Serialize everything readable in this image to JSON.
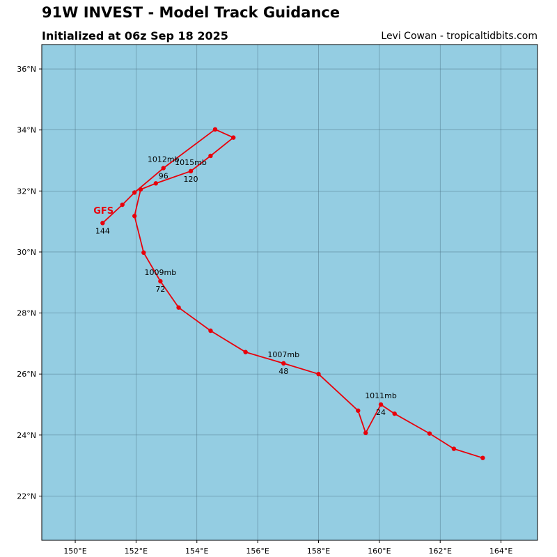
{
  "header": {
    "title": "91W INVEST - Model Track Guidance",
    "subtitle": "Initialized at 06z Sep 18 2025",
    "credit": "Levi Cowan - tropicaltidbits.com"
  },
  "map": {
    "lon_range": [
      148.9,
      165.2
    ],
    "lat_range": [
      20.55,
      36.8
    ],
    "ocean_color": "#94cde2",
    "grid_color": "#4a6f80",
    "track_color": "#e8000b",
    "lon_ticks": [
      {
        "value": 150,
        "label": "150°E"
      },
      {
        "value": 152,
        "label": "152°E"
      },
      {
        "value": 154,
        "label": "154°E"
      },
      {
        "value": 156,
        "label": "156°E"
      },
      {
        "value": 158,
        "label": "158°E"
      },
      {
        "value": 160,
        "label": "160°E"
      },
      {
        "value": 162,
        "label": "162°E"
      },
      {
        "value": 164,
        "label": "164°E"
      }
    ],
    "lat_ticks": [
      {
        "value": 22,
        "label": "22°N"
      },
      {
        "value": 24,
        "label": "24°N"
      },
      {
        "value": 26,
        "label": "26°N"
      },
      {
        "value": 28,
        "label": "28°N"
      },
      {
        "value": 30,
        "label": "30°N"
      },
      {
        "value": 32,
        "label": "32°N"
      },
      {
        "value": 34,
        "label": "34°N"
      },
      {
        "value": 36,
        "label": "36°N"
      }
    ]
  },
  "tracks": [
    {
      "model": "GFS",
      "label_pos": {
        "lon": 150.6,
        "lat": 31.25
      },
      "points": [
        {
          "lon": 163.4,
          "lat": 23.25
        },
        {
          "lon": 162.45,
          "lat": 23.55
        },
        {
          "lon": 161.65,
          "lat": 24.05
        },
        {
          "lon": 160.5,
          "lat": 24.7
        },
        {
          "lon": 160.05,
          "lat": 25.0
        },
        {
          "lon": 159.55,
          "lat": 24.07
        },
        {
          "lon": 159.3,
          "lat": 24.8
        },
        {
          "lon": 158.0,
          "lat": 26.0
        },
        {
          "lon": 156.85,
          "lat": 26.35
        },
        {
          "lon": 155.6,
          "lat": 26.72
        },
        {
          "lon": 154.45,
          "lat": 27.42
        },
        {
          "lon": 153.4,
          "lat": 28.18
        },
        {
          "lon": 152.8,
          "lat": 29.04
        },
        {
          "lon": 152.25,
          "lat": 29.98
        },
        {
          "lon": 151.95,
          "lat": 31.18
        },
        {
          "lon": 152.15,
          "lat": 32.05
        },
        {
          "lon": 152.65,
          "lat": 32.25
        },
        {
          "lon": 153.8,
          "lat": 32.65
        },
        {
          "lon": 154.45,
          "lat": 33.15
        },
        {
          "lon": 155.2,
          "lat": 33.75
        },
        {
          "lon": 154.6,
          "lat": 34.02
        },
        {
          "lon": 152.9,
          "lat": 32.75
        },
        {
          "lon": 151.95,
          "lat": 31.95
        },
        {
          "lon": 151.55,
          "lat": 31.55
        },
        {
          "lon": 150.9,
          "lat": 30.95
        }
      ],
      "annotations": [
        {
          "lon": 160.05,
          "lat": 25.0,
          "pressure": "1011mb",
          "hour": "24"
        },
        {
          "lon": 156.85,
          "lat": 26.35,
          "pressure": "1007mb",
          "hour": "48"
        },
        {
          "lon": 152.8,
          "lat": 29.04,
          "pressure": "1009mb",
          "hour": "72"
        },
        {
          "lon": 152.9,
          "lat": 32.75,
          "pressure": "1012mb",
          "hour": "96"
        },
        {
          "lon": 153.8,
          "lat": 32.65,
          "pressure": "1015mb",
          "hour": "120"
        },
        {
          "lon": 150.9,
          "lat": 30.95,
          "pressure": "",
          "hour": "144"
        }
      ]
    }
  ]
}
